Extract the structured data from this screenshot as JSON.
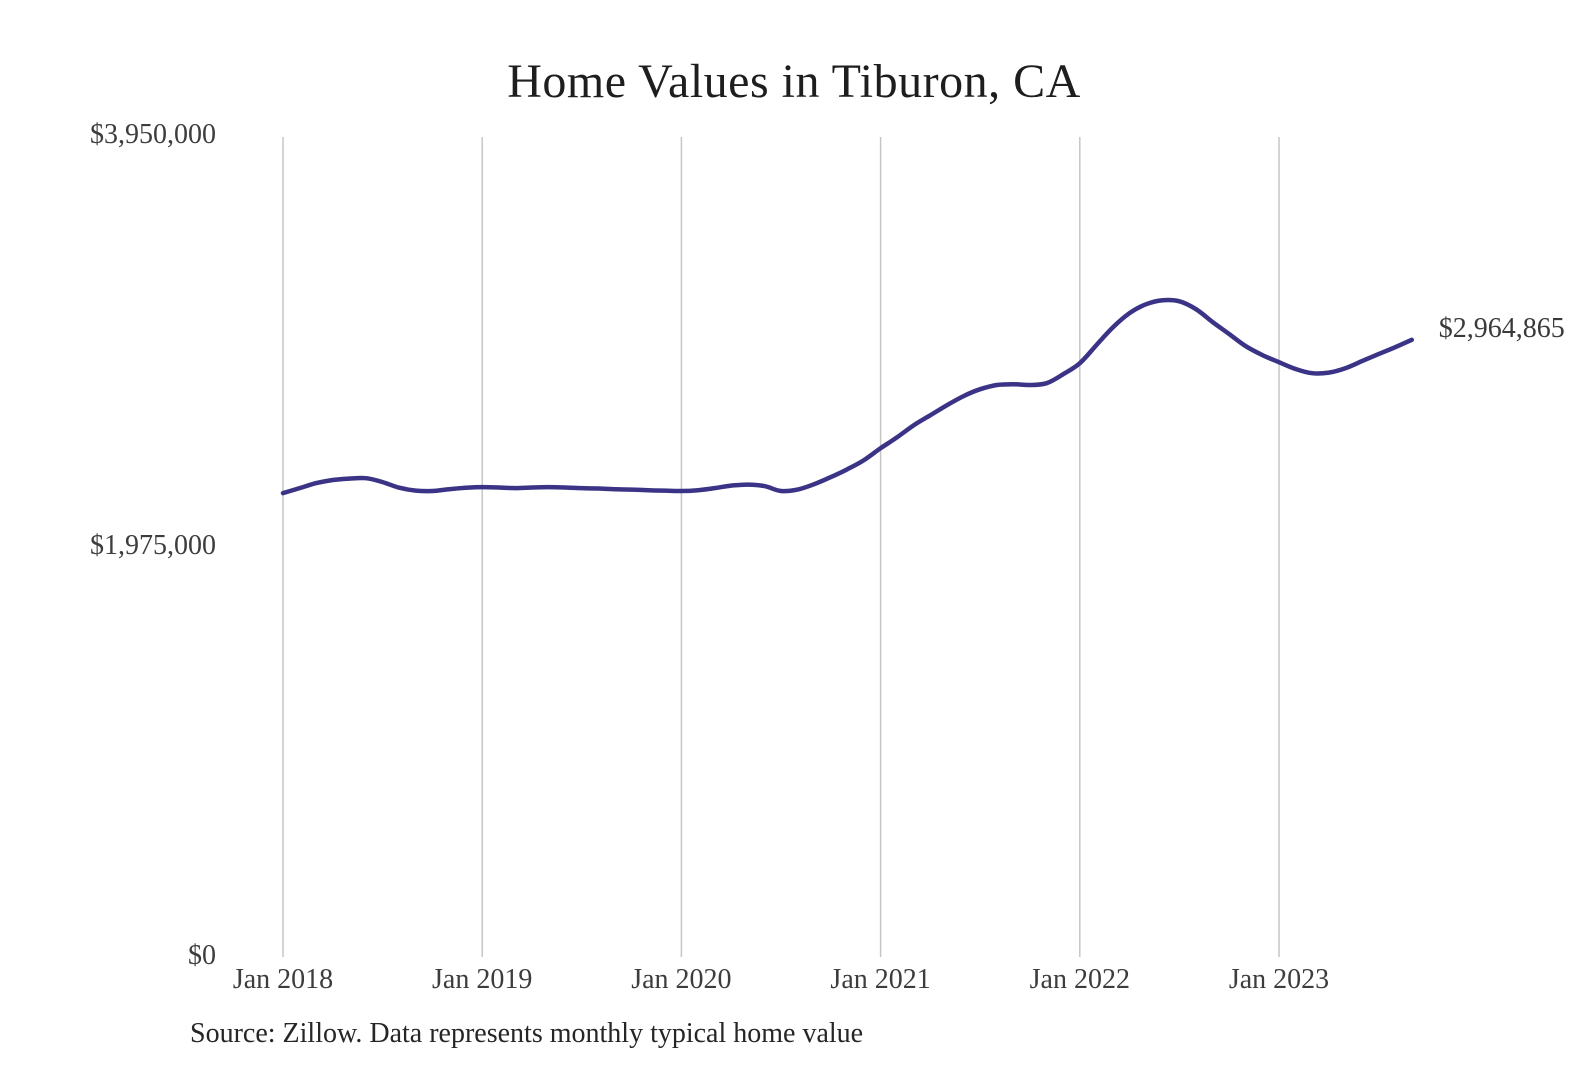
{
  "chart_data": {
    "type": "line",
    "title": "Home Values in Tiburon, CA",
    "source": "Source: Zillow. Data represents monthly typical home value",
    "last_value_label": "$2,964,865",
    "xlabel": "",
    "ylabel": "",
    "ylim": [
      0,
      3950000
    ],
    "grid": "vertical-only",
    "legend_position": "none",
    "line_color": "#3b3486",
    "gridline_color": "#c6c6c6",
    "y_ticks": [
      {
        "label": "$0",
        "value": 0
      },
      {
        "label": "$1,975,000",
        "value": 1975000
      },
      {
        "label": "$3,950,000",
        "value": 3950000
      }
    ],
    "x_ticks": [
      {
        "label": "Jan 2018",
        "month": "2018-01"
      },
      {
        "label": "Jan 2019",
        "month": "2019-01"
      },
      {
        "label": "Jan 2020",
        "month": "2020-01"
      },
      {
        "label": "Jan 2021",
        "month": "2021-01"
      },
      {
        "label": "Jan 2022",
        "month": "2022-01"
      },
      {
        "label": "Jan 2023",
        "month": "2023-01"
      }
    ],
    "x": [
      "2018-01",
      "2018-02",
      "2018-03",
      "2018-04",
      "2018-05",
      "2018-06",
      "2018-07",
      "2018-08",
      "2018-09",
      "2018-10",
      "2018-11",
      "2018-12",
      "2019-01",
      "2019-02",
      "2019-03",
      "2019-04",
      "2019-05",
      "2019-06",
      "2019-07",
      "2019-08",
      "2019-09",
      "2019-10",
      "2019-11",
      "2019-12",
      "2020-01",
      "2020-02",
      "2020-03",
      "2020-04",
      "2020-05",
      "2020-06",
      "2020-07",
      "2020-08",
      "2020-09",
      "2020-10",
      "2020-11",
      "2020-12",
      "2021-01",
      "2021-02",
      "2021-03",
      "2021-04",
      "2021-05",
      "2021-06",
      "2021-07",
      "2021-08",
      "2021-09",
      "2021-10",
      "2021-11",
      "2021-12",
      "2022-01",
      "2022-02",
      "2022-03",
      "2022-04",
      "2022-05",
      "2022-06",
      "2022-07",
      "2022-08",
      "2022-09",
      "2022-10",
      "2022-11",
      "2022-12",
      "2023-01",
      "2023-02",
      "2023-03",
      "2023-04",
      "2023-05",
      "2023-06",
      "2023-07",
      "2023-08",
      "2023-09"
    ],
    "values": [
      2227000,
      2251000,
      2275000,
      2290000,
      2297000,
      2299000,
      2280000,
      2253000,
      2239000,
      2237000,
      2246000,
      2253000,
      2256000,
      2254000,
      2251000,
      2254000,
      2256000,
      2254000,
      2251000,
      2249000,
      2246000,
      2244000,
      2241000,
      2239000,
      2237000,
      2241000,
      2251000,
      2263000,
      2268000,
      2261000,
      2237000,
      2244000,
      2270000,
      2304000,
      2342000,
      2386000,
      2443000,
      2496000,
      2554000,
      2602000,
      2650000,
      2694000,
      2727000,
      2747000,
      2751000,
      2747000,
      2756000,
      2799000,
      2852000,
      2939000,
      3025000,
      3093000,
      3136000,
      3155000,
      3150000,
      3112000,
      3050000,
      2992000,
      2934000,
      2891000,
      2857000,
      2824000,
      2804000,
      2807000,
      2828000,
      2862000,
      2896000,
      2929000,
      2964865
    ]
  }
}
